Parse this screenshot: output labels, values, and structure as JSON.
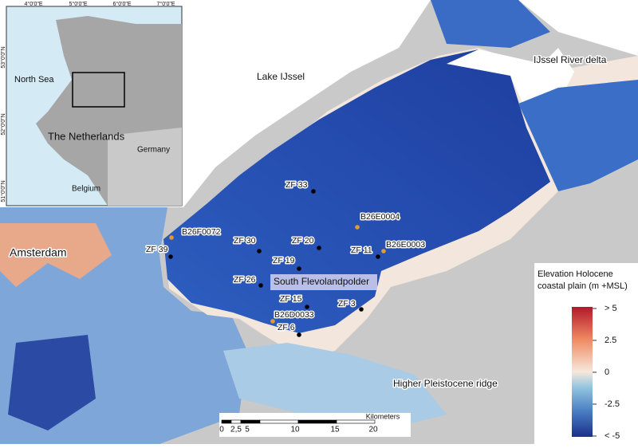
{
  "map_labels": [
    "Lake IJssel",
    "IJssel River delta",
    "Amsterdam",
    "South Flevolandpolder",
    "Higher Pleistocene ridge"
  ],
  "points": [
    {
      "label": "ZF 33",
      "color": "#000000"
    },
    {
      "label": "B26E0004",
      "color": "#e39b2f"
    },
    {
      "label": "B26F0072",
      "color": "#e39b2f"
    },
    {
      "label": "ZF 39",
      "color": "#000000"
    },
    {
      "label": "ZF 30",
      "color": "#000000"
    },
    {
      "label": "ZF 20",
      "color": "#000000"
    },
    {
      "label": "B26E0003",
      "color": "#e39b2f"
    },
    {
      "label": "ZF 11",
      "color": "#000000"
    },
    {
      "label": "ZF 19",
      "color": "#000000"
    },
    {
      "label": "ZF 26",
      "color": "#000000"
    },
    {
      "label": "ZF 15",
      "color": "#000000"
    },
    {
      "label": "ZF 3",
      "color": "#000000"
    },
    {
      "label": "B26D0033",
      "color": "#e39b2f"
    },
    {
      "label": "ZF 6",
      "color": "#000000"
    }
  ],
  "inset": {
    "labels": [
      "North Sea",
      "The Netherlands",
      "Germany",
      "Belgium"
    ],
    "lon_ticks": [
      "4°0'0\"E",
      "5°0'0\"E",
      "6°0'0\"E",
      "7°0'0\"E"
    ],
    "lat_ticks": [
      "53°0'0\"N",
      "52°0'0\"N",
      "51°0'0\"N"
    ]
  },
  "scale_bar": {
    "title": "Kilometers",
    "ticks": [
      "0",
      "2,5",
      "5",
      "10",
      "15",
      "20"
    ]
  },
  "legend": {
    "title_lines": [
      "Elevation Holocene",
      "coastal plain (m +MSL)"
    ],
    "ticks": [
      "> 5",
      "2.5",
      "0",
      "-2.5",
      "< -5"
    ]
  }
}
